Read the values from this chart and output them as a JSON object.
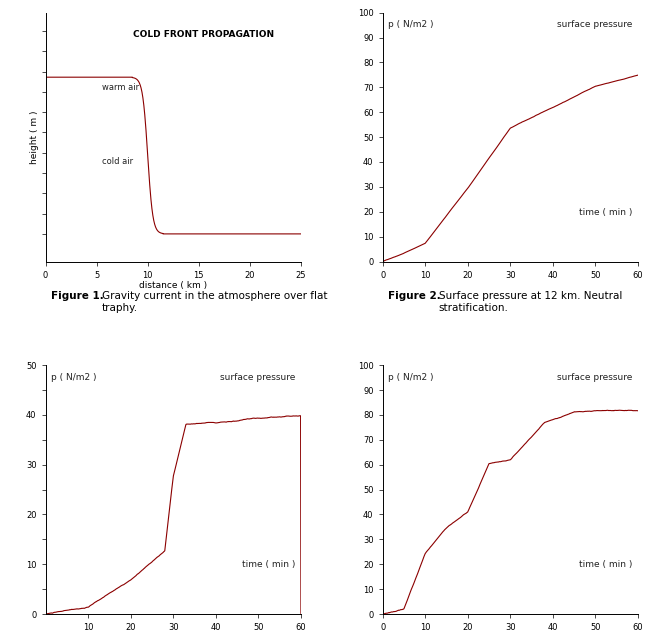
{
  "fig_width": 6.51,
  "fig_height": 6.33,
  "line_color": "#8B0000",
  "bg_color": "#ffffff",
  "panel1": {
    "title": "COLD FRONT PROPAGATION",
    "xlabel": "distance ( km )",
    "ylabel": "height ( m )",
    "xlim": [
      0,
      25
    ],
    "xticks": [
      0,
      5,
      10,
      15,
      20,
      25
    ],
    "warm_air_label": "warm air",
    "cold_air_label": "cold air"
  },
  "panel2": {
    "ylabel": "p ( N/m2 )",
    "xlabel": "time ( min )",
    "title_text": "surface pressure",
    "xlim": [
      0,
      60
    ],
    "ylim": [
      0,
      100
    ],
    "xticks": [
      0,
      10,
      20,
      30,
      40,
      50,
      60
    ],
    "yticks": [
      0,
      10,
      20,
      30,
      40,
      50,
      60,
      70,
      80,
      90,
      100
    ]
  },
  "panel3": {
    "ylabel": "p ( N/m2 )",
    "xlabel": "time ( min )",
    "title_text": "surface pressure",
    "xlim": [
      0,
      60
    ],
    "ylim": [
      0,
      50
    ],
    "xticks": [
      10,
      20,
      30,
      40,
      50,
      60
    ]
  },
  "panel4": {
    "ylabel": "p ( N/m2 )",
    "xlabel": "time ( min )",
    "title_text": "surface pressure",
    "xlim": [
      0,
      60
    ],
    "ylim": [
      0,
      100
    ],
    "xticks": [
      0,
      10,
      20,
      30,
      40,
      50,
      60
    ],
    "yticks": [
      0,
      10,
      20,
      30,
      40,
      50,
      60,
      70,
      80,
      90,
      100
    ]
  },
  "font_size_label": 6.5,
  "font_size_title": 6.5,
  "font_size_caption": 7.5
}
